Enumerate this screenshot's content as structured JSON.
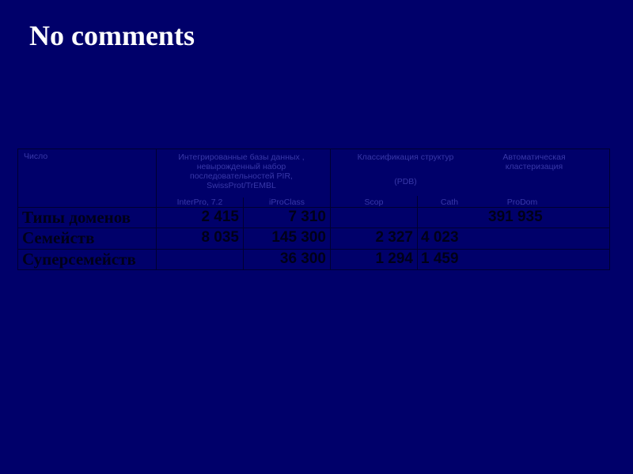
{
  "title": "No comments",
  "table": {
    "corner": "Число",
    "groups": {
      "integrated": "Интегрированные базы данных , невырожденный набор последовательностей PIR, SwissProt/TrEMBL",
      "structure": "Классификация структур",
      "structure_sub": "(PDB)",
      "auto": "Автоматическая кластеризация"
    },
    "columns": [
      "InterPro, 7.2",
      "iProClass",
      "Scop",
      "Cath",
      "ProDom"
    ],
    "rows": [
      {
        "label": "Типы доменов",
        "values": [
          "2 415",
          "7 310",
          "",
          "",
          "391 935"
        ]
      },
      {
        "label": "Семейств",
        "values": [
          "8 035",
          "145 300",
          "2 327",
          "4 023",
          ""
        ]
      },
      {
        "label": "Суперсемейств",
        "values": [
          "",
          "36 300",
          "1 294",
          "1 459",
          ""
        ]
      }
    ]
  }
}
